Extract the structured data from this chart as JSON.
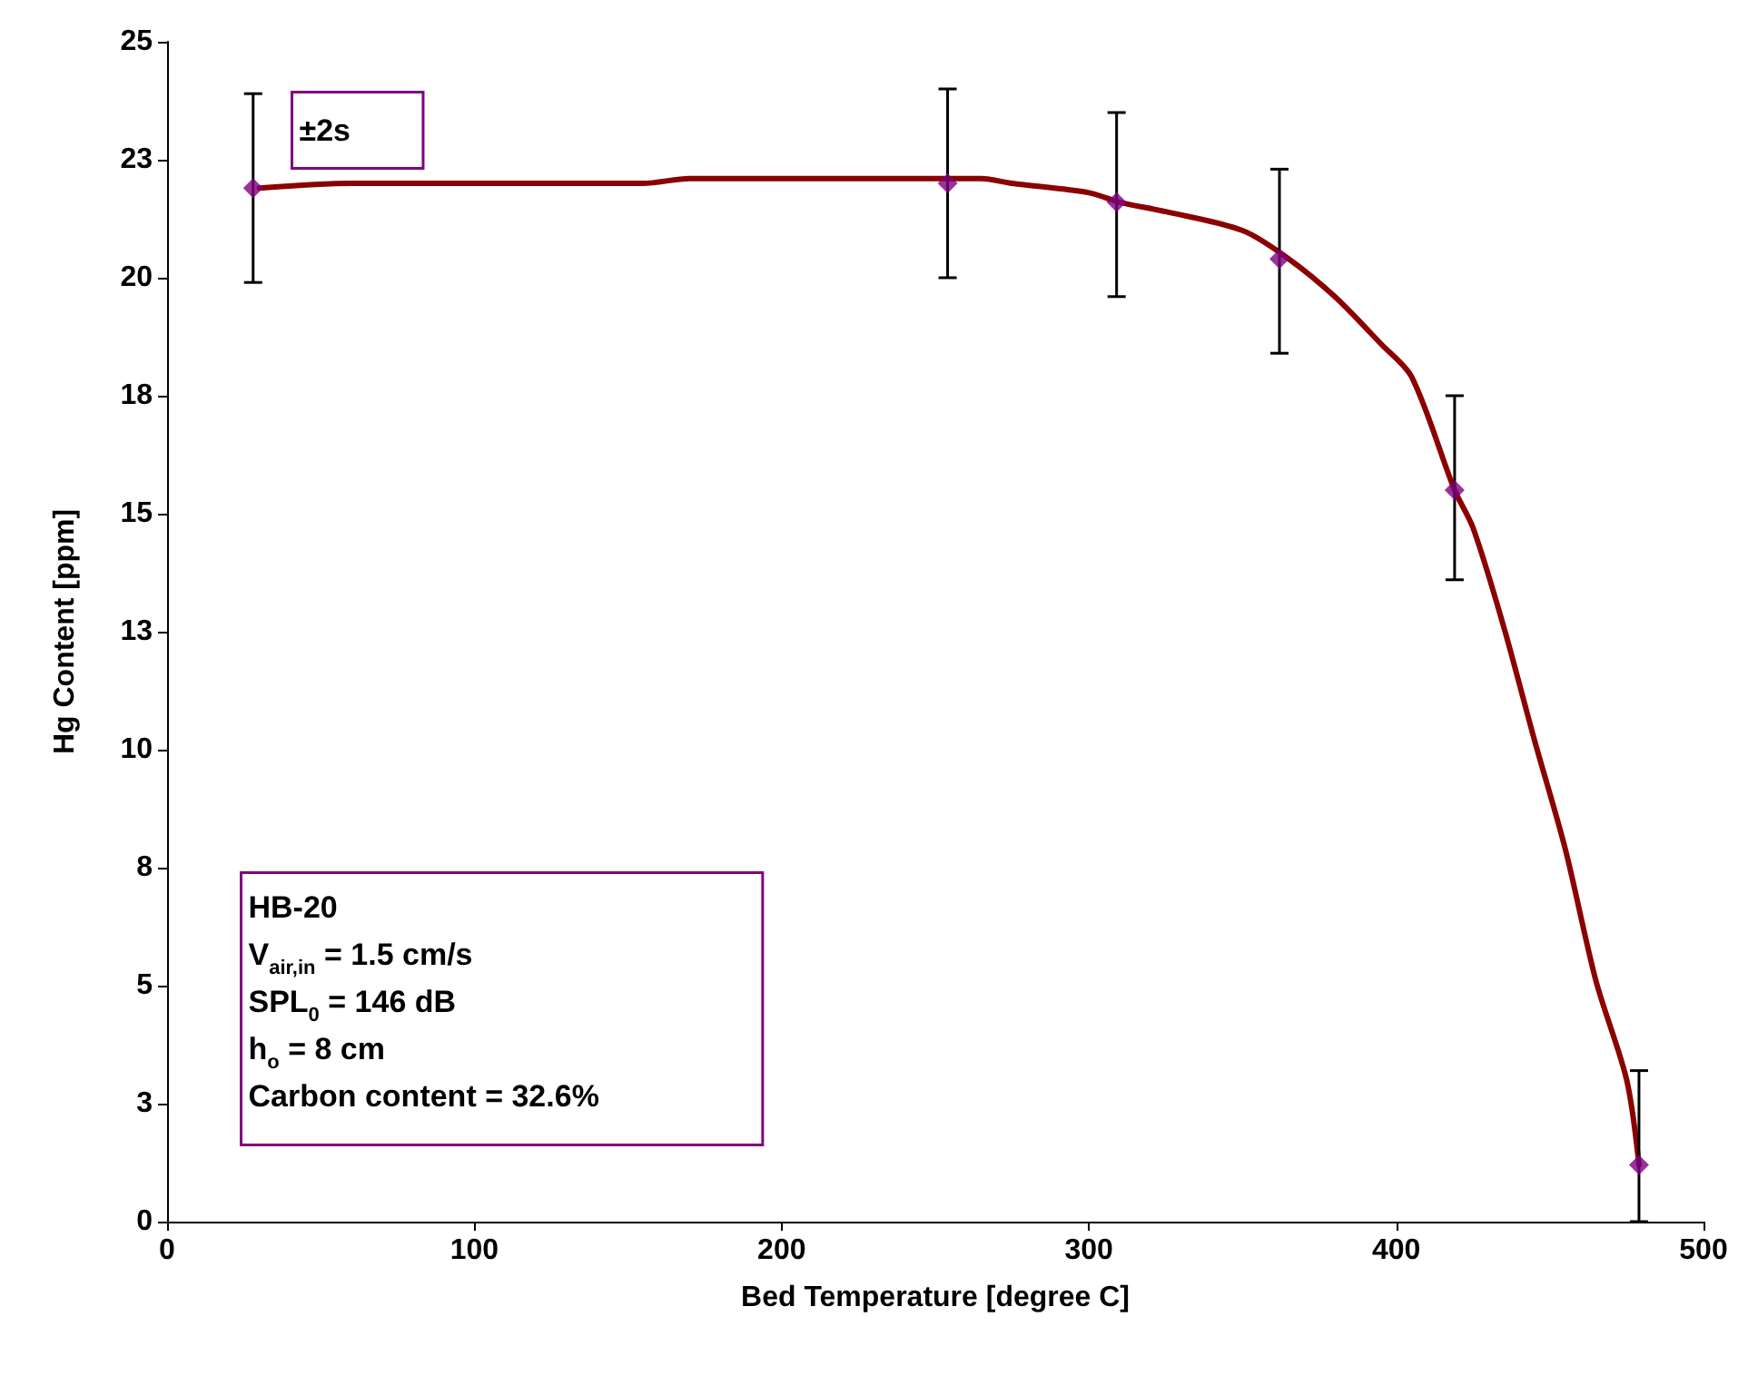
{
  "chart_data": {
    "type": "scatter",
    "xlabel": "Bed Temperature [degree C]",
    "ylabel": "Hg Content [ppm]",
    "xlim": [
      0,
      500
    ],
    "xticks": [
      0,
      100,
      200,
      300,
      400,
      500
    ],
    "ylim": [
      0,
      25
    ],
    "yticks": [
      0,
      {
        "value": 2.5,
        "label": "3"
      },
      5,
      {
        "value": 7.5,
        "label": "8"
      },
      10,
      {
        "value": 12.5,
        "label": "13"
      },
      15,
      {
        "value": 17.5,
        "label": "18"
      },
      20,
      {
        "value": 22.5,
        "label": "23"
      },
      25
    ],
    "grid": false,
    "marker": "diamond",
    "series": [
      {
        "type": "line",
        "color": "#8b0000",
        "marker": "none",
        "line_style": "solid",
        "x": [
          30,
          60,
          155,
          170,
          265,
          275,
          300,
          310,
          325,
          350,
          365,
          380,
          395,
          405,
          419,
          425,
          435,
          445,
          455,
          465,
          475,
          479
        ],
        "values": [
          21.9,
          22.0,
          22.0,
          22.1,
          22.1,
          22.0,
          21.8,
          21.6,
          21.4,
          21.0,
          20.4,
          19.6,
          18.6,
          17.9,
          15.5,
          14.7,
          12.6,
          10.2,
          7.9,
          5.1,
          3.0,
          1.2
        ]
      },
      {
        "color": "#800080",
        "x": [
          28,
          254,
          309,
          362,
          419,
          479
        ],
        "values": [
          21.9,
          22.0,
          21.6,
          20.4,
          15.5,
          1.2
        ],
        "errors": [
          [
            19.9,
            23.9
          ],
          [
            20.0,
            24.0
          ],
          [
            19.6,
            23.5
          ],
          [
            18.4,
            22.3
          ],
          [
            13.6,
            17.5
          ],
          [
            0,
            3.2
          ]
        ]
      }
    ],
    "annotations": [
      "±2s",
      "HB-20\nV$_{air,in}$ = 1.5 cm/s\nSPL$_{0}$ = 146 dB\nh$_{o}$ = 8 cm\nCarbon content = 32.6%"
    ]
  }
}
